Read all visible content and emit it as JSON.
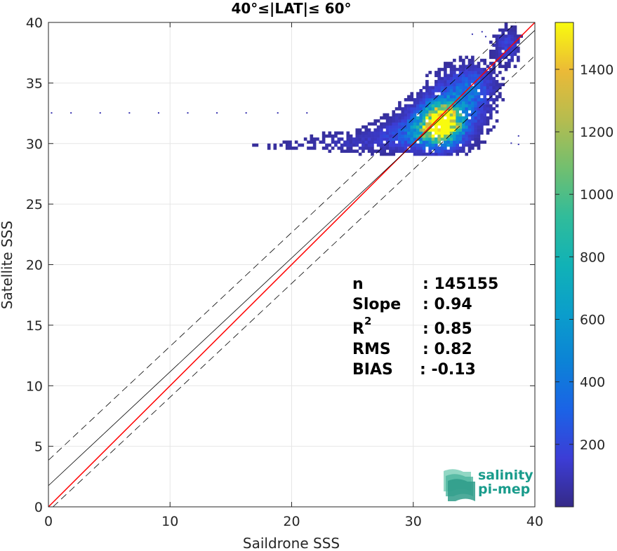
{
  "chart_data": {
    "type": "heatmap",
    "title": "40°≤|LAT|≤ 60°",
    "xlabel": "Saildrone SSS",
    "ylabel": "Satellite SSS",
    "xlim": [
      0,
      40
    ],
    "ylim": [
      0,
      40
    ],
    "xticks": [
      "0",
      "10",
      "20",
      "30",
      "40"
    ],
    "yticks": [
      "0",
      "5",
      "10",
      "15",
      "20",
      "25",
      "30",
      "35",
      "40"
    ],
    "grid": true,
    "colorbar": {
      "range": [
        0,
        1550
      ],
      "ticks": [
        "200",
        "400",
        "600",
        "800",
        "1000",
        "1200",
        "1400"
      ],
      "tick_values": [
        200,
        400,
        600,
        800,
        1000,
        1200,
        1400
      ],
      "colormap": "parula"
    },
    "lines": [
      {
        "kind": "identity",
        "color": "#ff0000",
        "x": [
          0,
          40
        ],
        "y": [
          0,
          40
        ]
      },
      {
        "kind": "regression",
        "color": "#000000",
        "x": [
          0,
          40
        ],
        "y": [
          1.75,
          39.35
        ]
      },
      {
        "kind": "regression-upper",
        "color": "#000000",
        "dashed": true,
        "x": [
          0,
          40
        ],
        "y": [
          3.85,
          41.45
        ]
      },
      {
        "kind": "regression-lower",
        "color": "#000000",
        "dashed": true,
        "x": [
          0,
          40
        ],
        "y": [
          -0.35,
          37.25
        ]
      }
    ],
    "density_clusters": [
      {
        "x": 32.2,
        "y": 31.6,
        "sx": 0.9,
        "sy": 0.9,
        "peak": 1100
      },
      {
        "x": 31.6,
        "y": 31.2,
        "sx": 1.4,
        "sy": 1.0,
        "peak": 420
      },
      {
        "x": 33.4,
        "y": 33.0,
        "sx": 1.3,
        "sy": 1.3,
        "peak": 240
      },
      {
        "x": 34.8,
        "y": 34.6,
        "sx": 1.0,
        "sy": 1.0,
        "peak": 140
      },
      {
        "x": 37.6,
        "y": 37.9,
        "sx": 0.6,
        "sy": 0.8,
        "peak": 90
      },
      {
        "x": 29.6,
        "y": 30.6,
        "sx": 1.8,
        "sy": 0.7,
        "peak": 110
      },
      {
        "x": 25.5,
        "y": 30.0,
        "sx": 2.5,
        "sy": 0.5,
        "peak": 40
      },
      {
        "x": 20.0,
        "y": 29.7,
        "sx": 2.5,
        "sy": 0.2,
        "peak": 15
      }
    ],
    "sparse_points": [
      {
        "x": 0.2,
        "y": 32.5
      },
      {
        "x": 1.8,
        "y": 32.5
      },
      {
        "x": 4.2,
        "y": 32.5
      },
      {
        "x": 6.6,
        "y": 32.5
      },
      {
        "x": 9.0,
        "y": 32.5
      },
      {
        "x": 11.4,
        "y": 32.5
      },
      {
        "x": 13.8,
        "y": 32.5
      },
      {
        "x": 16.2,
        "y": 32.5
      },
      {
        "x": 18.8,
        "y": 32.5
      },
      {
        "x": 21.2,
        "y": 32.5
      },
      {
        "x": 38.6,
        "y": 30.6
      },
      {
        "x": 38.6,
        "y": 29.9
      },
      {
        "x": 38.0,
        "y": 30.0
      },
      {
        "x": 35.6,
        "y": 39.2
      },
      {
        "x": 35.9,
        "y": 38.8
      },
      {
        "x": 34.8,
        "y": 39.0
      }
    ]
  },
  "stats": {
    "n_label": "n",
    "n_value": ": 145155",
    "slope_label": "Slope",
    "slope_value": ": 0.94",
    "r2_label": "R",
    "r2_sup": "2",
    "r2_value": ": 0.85",
    "rms_label": "RMS",
    "rms_value": ": 0.82",
    "bias_label": "BIAS",
    "bias_value": ": -0.13"
  },
  "logo": {
    "line1": "salinity",
    "line2": "pi-mep",
    "color": "#1a9c8c"
  }
}
